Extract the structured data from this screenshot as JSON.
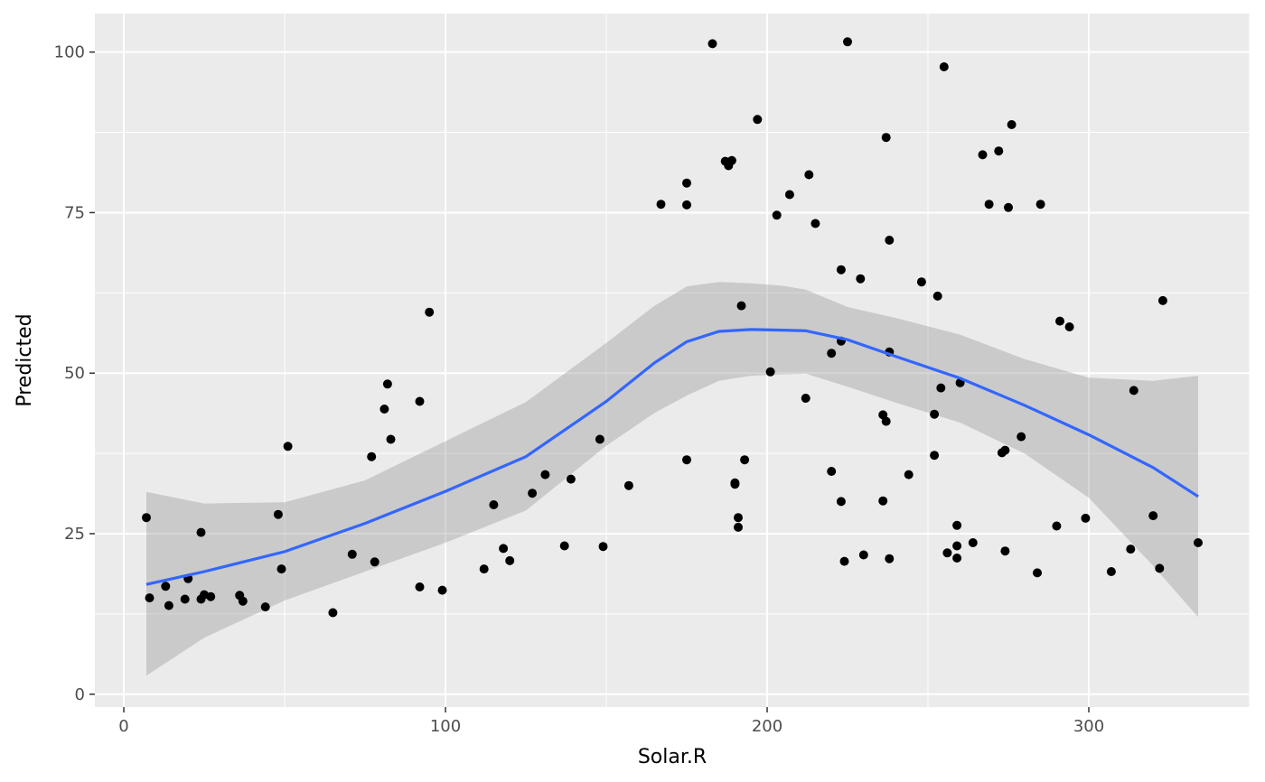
{
  "chart_data": {
    "type": "scatter",
    "xlabel": "Solar.R",
    "ylabel": "Predicted",
    "xlim": [
      -9,
      350
    ],
    "ylim": [
      -2,
      106
    ],
    "x_ticks": [
      0,
      100,
      200,
      300
    ],
    "y_ticks": [
      0,
      25,
      50,
      75,
      100
    ],
    "grid": true,
    "colors": {
      "panel_bg": "#ebebeb",
      "grid_major": "#ffffff",
      "points": "#000000",
      "smooth_line": "#3366ff",
      "confidence_band": "#999999"
    },
    "points": [
      [
        7,
        27.5
      ],
      [
        8,
        15
      ],
      [
        13,
        16.8
      ],
      [
        14,
        13.8
      ],
      [
        19,
        14.8
      ],
      [
        20,
        18
      ],
      [
        24,
        25.2
      ],
      [
        24,
        14.8
      ],
      [
        25,
        15.5
      ],
      [
        27,
        15.2
      ],
      [
        36,
        15.4
      ],
      [
        37,
        14.5
      ],
      [
        44,
        13.6
      ],
      [
        48,
        28
      ],
      [
        49,
        19.5
      ],
      [
        51,
        38.6
      ],
      [
        65,
        12.7
      ],
      [
        71,
        21.8
      ],
      [
        77,
        37
      ],
      [
        78,
        20.6
      ],
      [
        81,
        44.4
      ],
      [
        82,
        48.3
      ],
      [
        83,
        39.7
      ],
      [
        92,
        45.6
      ],
      [
        92,
        16.7
      ],
      [
        95,
        59.5
      ],
      [
        99,
        16.2
      ],
      [
        112,
        19.5
      ],
      [
        115,
        29.5
      ],
      [
        118,
        22.7
      ],
      [
        120,
        20.8
      ],
      [
        127,
        31.3
      ],
      [
        131,
        34.2
      ],
      [
        137,
        23.1
      ],
      [
        139,
        33.5
      ],
      [
        148,
        39.7
      ],
      [
        149,
        23
      ],
      [
        157,
        32.5
      ],
      [
        167,
        76.3
      ],
      [
        175,
        79.6
      ],
      [
        175,
        76.2
      ],
      [
        175,
        36.5
      ],
      [
        183,
        101.3
      ],
      [
        187,
        83
      ],
      [
        188,
        82.3
      ],
      [
        189,
        83.1
      ],
      [
        190,
        32.9
      ],
      [
        190,
        32.7
      ],
      [
        191,
        27.5
      ],
      [
        191,
        26
      ],
      [
        192,
        60.5
      ],
      [
        193,
        36.5
      ],
      [
        197,
        89.5
      ],
      [
        201,
        50.2
      ],
      [
        203,
        74.6
      ],
      [
        207,
        77.8
      ],
      [
        212,
        46.1
      ],
      [
        213,
        80.9
      ],
      [
        215,
        73.3
      ],
      [
        220,
        53.1
      ],
      [
        220,
        34.7
      ],
      [
        223,
        66.1
      ],
      [
        223,
        55
      ],
      [
        223,
        30
      ],
      [
        224,
        20.7
      ],
      [
        225,
        101.6
      ],
      [
        229,
        64.7
      ],
      [
        230,
        21.7
      ],
      [
        236,
        43.5
      ],
      [
        236,
        30.1
      ],
      [
        237,
        86.7
      ],
      [
        237,
        42.5
      ],
      [
        238,
        70.7
      ],
      [
        238,
        53.3
      ],
      [
        238,
        21.1
      ],
      [
        244,
        34.2
      ],
      [
        248,
        64.2
      ],
      [
        252,
        43.6
      ],
      [
        252,
        37.2
      ],
      [
        253,
        62
      ],
      [
        254,
        47.7
      ],
      [
        255,
        97.7
      ],
      [
        256,
        22
      ],
      [
        259,
        26.3
      ],
      [
        259,
        23.1
      ],
      [
        259,
        21.2
      ],
      [
        260,
        48.5
      ],
      [
        264,
        23.6
      ],
      [
        267,
        84
      ],
      [
        269,
        76.3
      ],
      [
        272,
        84.6
      ],
      [
        273,
        37.6
      ],
      [
        274,
        38
      ],
      [
        274,
        22.3
      ],
      [
        275,
        75.8
      ],
      [
        276,
        88.7
      ],
      [
        279,
        40.1
      ],
      [
        284,
        18.9
      ],
      [
        285,
        76.3
      ],
      [
        290,
        26.2
      ],
      [
        291,
        58.1
      ],
      [
        294,
        57.2
      ],
      [
        299,
        27.4
      ],
      [
        307,
        19.1
      ],
      [
        313,
        22.6
      ],
      [
        314,
        47.3
      ],
      [
        320,
        27.8
      ],
      [
        322,
        19.6
      ],
      [
        323,
        61.3
      ],
      [
        334,
        23.6
      ]
    ],
    "smooth": {
      "x": [
        7,
        25,
        50,
        75,
        100,
        125,
        150,
        165,
        175,
        185,
        195,
        205,
        212,
        225,
        240,
        260,
        280,
        300,
        320,
        334
      ],
      "y": [
        17.1,
        19.1,
        22.2,
        26.6,
        31.6,
        37.0,
        45.6,
        51.6,
        54.9,
        56.5,
        56.8,
        56.7,
        56.6,
        55.2,
        52.6,
        49.2,
        45.0,
        40.4,
        35.3,
        30.8
      ],
      "upper": [
        31.5,
        29.7,
        29.9,
        33.3,
        39.4,
        45.5,
        54.7,
        60.5,
        63.5,
        64.2,
        64.0,
        63.6,
        63.0,
        60.3,
        58.6,
        56.0,
        52.2,
        49.3,
        48.8,
        49.6
      ],
      "lower": [
        2.9,
        8.8,
        14.6,
        19.1,
        23.6,
        28.6,
        38.7,
        43.8,
        46.5,
        48.8,
        49.6,
        49.8,
        49.9,
        47.9,
        45.4,
        42.3,
        37.5,
        30.6,
        20.0,
        12.0
      ]
    }
  }
}
